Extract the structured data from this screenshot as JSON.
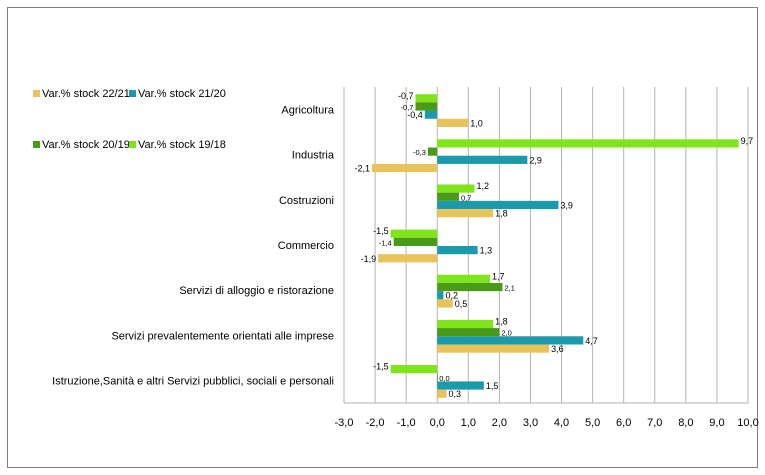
{
  "chart_data": {
    "type": "bar",
    "orientation": "horizontal",
    "title": "",
    "xlabel": "",
    "ylabel": "",
    "xlim": [
      -3.0,
      10.0
    ],
    "x_ticks": [
      "-3,0",
      "-2,0",
      "-1,0",
      "0,0",
      "1,0",
      "2,0",
      "3,0",
      "4,0",
      "5,0",
      "6,0",
      "7,0",
      "8,0",
      "9,0",
      "10,0"
    ],
    "grid": "vertical",
    "legend_position": "top-left",
    "categories": [
      "Agricoltura",
      "Industria",
      "Costruzioni",
      "Commercio",
      "Servizi di alloggio e ristorazione",
      "Servizi prevalentemente orientati alle imprese",
      "Istruzione,Sanità e altri Servizi pubblici, sociali e personali"
    ],
    "series": [
      {
        "name": "Var.% stock 19/18",
        "color": "#7fe51a",
        "values": [
          -0.7,
          9.7,
          1.2,
          -1.5,
          1.7,
          1.8,
          -1.5
        ],
        "labels": [
          "-0,7",
          "9,7",
          "1,2",
          "-1,5",
          "1,7",
          "1,8",
          "-1,5"
        ]
      },
      {
        "name": "Var.% stock 20/19",
        "color": "#4a9a1a",
        "values": [
          -0.7,
          -0.3,
          0.7,
          -1.4,
          2.1,
          2.0,
          0.0
        ],
        "labels": [
          "-0,7",
          "-0,3",
          "0,7",
          "-1,4",
          "2,1",
          "2,0",
          "0,0"
        ]
      },
      {
        "name": "Var.% stock 21/20",
        "color": "#1a9aaa",
        "values": [
          -0.4,
          2.9,
          3.9,
          1.3,
          0.2,
          4.7,
          1.5
        ],
        "labels": [
          "-0,4",
          "2,9",
          "3,9",
          "1,3",
          "0,2",
          "4,7",
          "1,5"
        ]
      },
      {
        "name": "Var.% stock 22/21",
        "color": "#e8c35a",
        "values": [
          1.0,
          -2.1,
          1.8,
          -1.9,
          0.5,
          3.6,
          0.3
        ],
        "labels": [
          "1,0",
          "-2,1",
          "1,8",
          "-1,9",
          "0,5",
          "3,6",
          "0,3"
        ]
      }
    ],
    "legend": [
      {
        "name": "Var.% stock 22/21",
        "color": "#e8c35a"
      },
      {
        "name": "Var.% stock 21/20",
        "color": "#1a9aaa"
      },
      {
        "name": "Var.% stock 20/19",
        "color": "#4a9a1a"
      },
      {
        "name": "Var.% stock 19/18",
        "color": "#7fe51a"
      }
    ]
  }
}
